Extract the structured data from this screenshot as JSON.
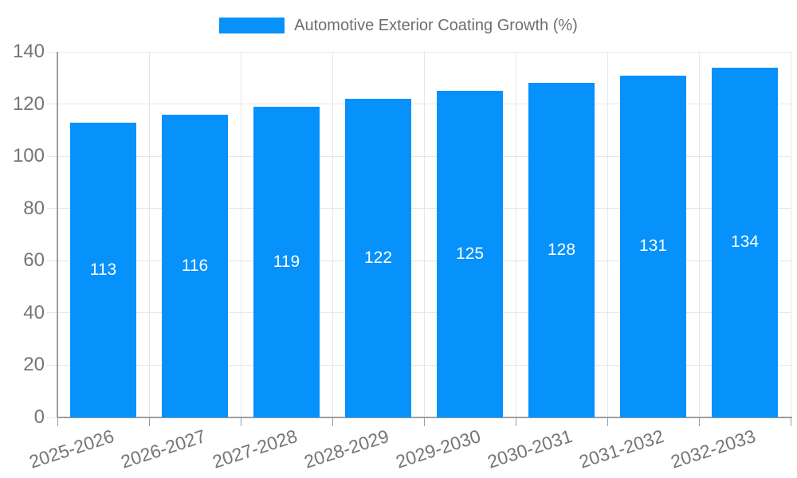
{
  "chart_data": {
    "type": "bar",
    "title": "Automotive Exterior Coating Growth (%)",
    "legend_label": "Automotive Exterior Coating Growth (%)",
    "legend_position": "top",
    "categories": [
      "2025-2026",
      "2026-2027",
      "2027-2028",
      "2028-2029",
      "2029-2030",
      "2030-2031",
      "2031-2032",
      "2032-2033"
    ],
    "values": [
      113,
      116,
      119,
      122,
      125,
      128,
      131,
      134
    ],
    "xlabel": "",
    "ylabel": "",
    "ylim": [
      0,
      140
    ],
    "yticks": [
      0,
      20,
      40,
      60,
      80,
      100,
      120,
      140
    ],
    "grid": "on",
    "bar_labels_shown": true,
    "colors": {
      "bar": "#0691FB",
      "gridline": "#e6e6e6",
      "axis_line": "#9e9e9e",
      "tick_text": "#757575",
      "legend_text": "#6e6e6e",
      "bar_value_text": "#ffffff",
      "background": "#ffffff"
    }
  }
}
